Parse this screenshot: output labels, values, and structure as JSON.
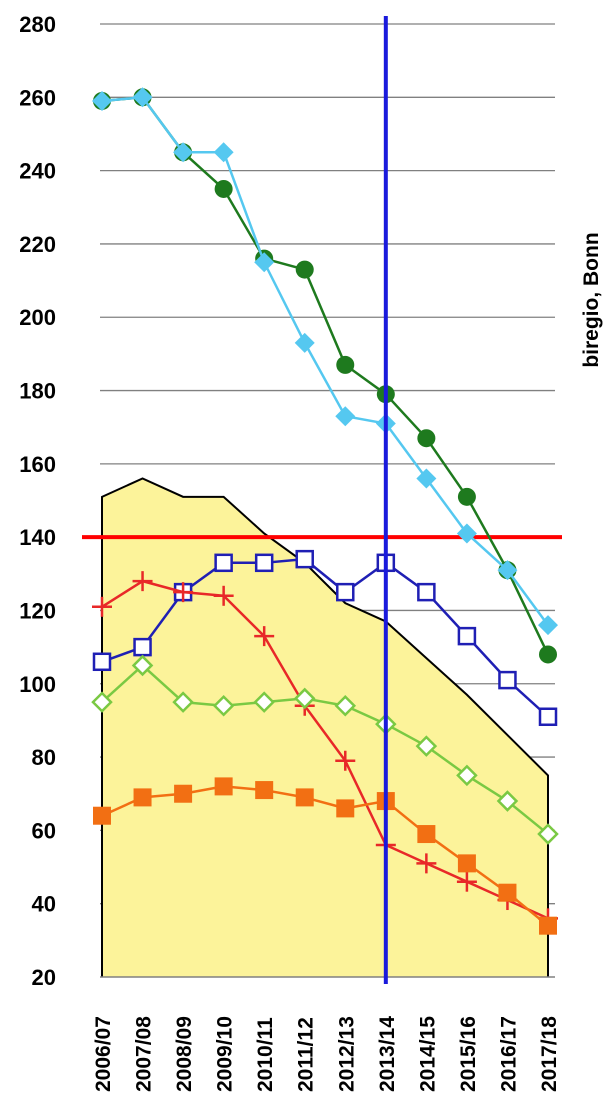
{
  "chart_data": {
    "type": "line",
    "side_label": "biregio, Bonn",
    "categories": [
      "2006/07",
      "2007/08",
      "2008/09",
      "2009/10",
      "2010/11",
      "2011/12",
      "2012/13",
      "2013/14",
      "2014/15",
      "2015/16",
      "2016/17",
      "2017/18"
    ],
    "ylim": [
      20,
      280
    ],
    "yticks": [
      20,
      40,
      60,
      80,
      100,
      120,
      140,
      160,
      180,
      200,
      220,
      240,
      260,
      280
    ],
    "grid": true,
    "reference_line_y": 140,
    "reference_line_color": "#ff0000",
    "marker_line_category": "2013/14",
    "marker_line_color": "#1a1adc",
    "area": {
      "fill": "#fcf39a",
      "stroke": "#000000",
      "values": [
        151,
        156,
        151,
        151,
        141,
        133,
        122,
        117,
        107,
        97,
        86,
        75
      ]
    },
    "series": [
      {
        "marker": "circle",
        "color": "#1e7a1e",
        "values": [
          259,
          260,
          245,
          235,
          216,
          213,
          187,
          179,
          167,
          151,
          131,
          108
        ]
      },
      {
        "marker": "diamond",
        "color": "#55c8f0",
        "values": [
          259,
          260,
          245,
          245,
          215,
          193,
          173,
          171,
          156,
          141,
          131,
          116
        ]
      },
      {
        "marker": "open-square",
        "color": "#1f1fb4",
        "values": [
          106,
          110,
          125,
          133,
          133,
          134,
          125,
          133,
          125,
          113,
          101,
          91
        ]
      },
      {
        "marker": "plus",
        "color": "#e82828",
        "values": [
          121,
          128,
          125,
          124,
          113,
          94,
          79,
          56,
          51,
          46,
          41,
          36
        ]
      },
      {
        "marker": "open-diamond",
        "color": "#7ac943",
        "values": [
          95,
          105,
          95,
          94,
          95,
          96,
          94,
          89,
          83,
          75,
          68,
          59
        ]
      },
      {
        "marker": "filled-square",
        "color": "#f26f13",
        "values": [
          64,
          69,
          70,
          72,
          71,
          69,
          66,
          68,
          59,
          51,
          43,
          34
        ]
      }
    ]
  }
}
